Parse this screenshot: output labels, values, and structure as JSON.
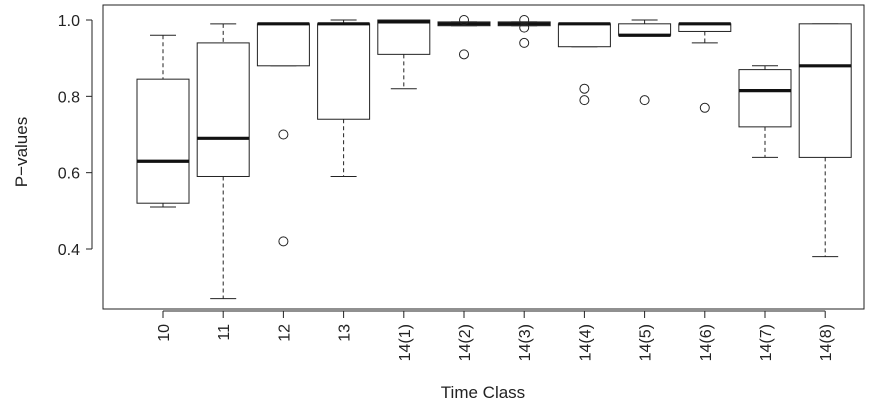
{
  "chart_data": {
    "type": "boxplot",
    "xlabel": "Time Class",
    "ylabel": "P−values",
    "ylim": [
      0.22,
      1.02
    ],
    "yticks": [
      0.4,
      0.6,
      0.8,
      1.0
    ],
    "ytick_labels": [
      "0.4",
      "0.6",
      "0.8",
      "1.0"
    ],
    "categories": [
      "10",
      "11",
      "12",
      "13",
      "14(1)",
      "14(2)",
      "14(3)",
      "14(4)",
      "14(5)",
      "14(6)",
      "14(7)",
      "14(8)"
    ],
    "boxes": [
      {
        "category": "10",
        "whisker_low": 0.51,
        "q1": 0.52,
        "median": 0.63,
        "q3": 0.845,
        "whisker_high": 0.96,
        "outliers": []
      },
      {
        "category": "11",
        "whisker_low": 0.27,
        "q1": 0.59,
        "median": 0.69,
        "q3": 0.94,
        "whisker_high": 0.99,
        "outliers": []
      },
      {
        "category": "12",
        "whisker_low": 0.88,
        "q1": 0.88,
        "median": 0.99,
        "q3": 0.99,
        "whisker_high": 0.99,
        "outliers": [
          0.7,
          0.42
        ]
      },
      {
        "category": "13",
        "whisker_low": 0.59,
        "q1": 0.74,
        "median": 0.99,
        "q3": 0.99,
        "whisker_high": 1.0,
        "outliers": []
      },
      {
        "category": "14(1)",
        "whisker_low": 0.82,
        "q1": 0.91,
        "median": 0.995,
        "q3": 1.0,
        "whisker_high": 1.0,
        "outliers": []
      },
      {
        "category": "14(2)",
        "whisker_low": 0.985,
        "q1": 0.985,
        "median": 0.99,
        "q3": 0.995,
        "whisker_high": 0.995,
        "outliers": [
          1.0,
          0.91
        ]
      },
      {
        "category": "14(3)",
        "whisker_low": 0.985,
        "q1": 0.985,
        "median": 0.99,
        "q3": 0.995,
        "whisker_high": 0.995,
        "outliers": [
          1.0,
          0.98,
          0.94
        ]
      },
      {
        "category": "14(4)",
        "whisker_low": 0.93,
        "q1": 0.93,
        "median": 0.99,
        "q3": 0.99,
        "whisker_high": 0.99,
        "outliers": [
          0.82,
          0.79
        ]
      },
      {
        "category": "14(5)",
        "whisker_low": 0.96,
        "q1": 0.96,
        "median": 0.96,
        "q3": 0.99,
        "whisker_high": 1.0,
        "outliers": [
          0.79
        ]
      },
      {
        "category": "14(6)",
        "whisker_low": 0.94,
        "q1": 0.97,
        "median": 0.99,
        "q3": 0.99,
        "whisker_high": 0.99,
        "outliers": [
          0.77
        ]
      },
      {
        "category": "14(7)",
        "whisker_low": 0.64,
        "q1": 0.72,
        "median": 0.815,
        "q3": 0.87,
        "whisker_high": 0.88,
        "outliers": []
      },
      {
        "category": "14(8)",
        "whisker_low": 0.38,
        "q1": 0.64,
        "median": 0.88,
        "q3": 0.99,
        "whisker_high": 0.99,
        "outliers": []
      }
    ]
  }
}
